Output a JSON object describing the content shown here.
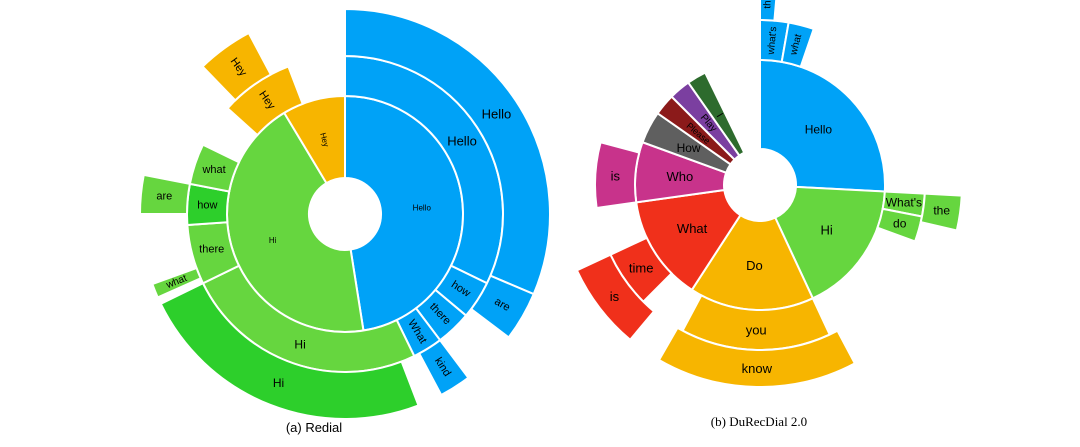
{
  "palette": {
    "blue": "#00a2f7",
    "green": "#66d63f",
    "dark_green": "#2dcf2b",
    "orange": "#f7b500",
    "red": "#f0301b",
    "magenta": "#c8338b",
    "purple_gray": "#7a6a8a",
    "dark_red": "#8b1a1a",
    "forest": "#2d6b2d",
    "gray": "#5f5f5f",
    "violet": "#7b3fa0"
  },
  "chart_data": [
    {
      "type": "sunburst",
      "caption": "(a) Redial",
      "rings": [
        {
          "level": 1,
          "segments": [
            {
              "label": "Hello",
              "color": "blue",
              "share": 0.475
            },
            {
              "label": "Hi",
              "color": "green",
              "share": 0.44
            },
            {
              "label": "Hey",
              "color": "orange",
              "share": 0.085
            }
          ]
        },
        {
          "level": 2,
          "segments": [
            {
              "label": "Hello",
              "color": "blue"
            },
            {
              "label": "how",
              "color": "blue"
            },
            {
              "label": "there",
              "color": "blue"
            },
            {
              "label": "What",
              "color": "blue"
            },
            {
              "label": "Hi",
              "color": "green"
            },
            {
              "label": "there",
              "color": "green"
            },
            {
              "label": "how",
              "color": "dark_green"
            },
            {
              "label": "what",
              "color": "green"
            },
            {
              "label": "Hey",
              "color": "orange"
            }
          ]
        },
        {
          "level": 3,
          "segments": [
            {
              "label": "Hello",
              "color": "blue"
            },
            {
              "label": "are",
              "color": "blue"
            },
            {
              "label": "kind",
              "color": "blue"
            },
            {
              "label": "Hi",
              "color": "dark_green"
            },
            {
              "label": "what",
              "color": "green"
            },
            {
              "label": "are",
              "color": "green"
            },
            {
              "label": "Hey",
              "color": "orange"
            }
          ]
        }
      ]
    },
    {
      "type": "sunburst",
      "caption": "(b) DuRecDial 2.0",
      "rings": [
        {
          "level": 1,
          "segments": [
            {
              "label": "Hello",
              "color": "blue"
            },
            {
              "label": "Hi",
              "color": "green"
            },
            {
              "label": "Do",
              "color": "orange"
            },
            {
              "label": "What",
              "color": "red"
            },
            {
              "label": "Who",
              "color": "magenta"
            },
            {
              "label": "How",
              "color": "gray"
            },
            {
              "label": "Please",
              "color": "dark_red"
            },
            {
              "label": "Play",
              "color": "violet"
            },
            {
              "label": "I",
              "color": "forest"
            }
          ]
        },
        {
          "level": 2,
          "segments": [
            {
              "label": "what's",
              "color": "blue"
            },
            {
              "label": "what",
              "color": "blue"
            },
            {
              "label": "What's",
              "color": "green"
            },
            {
              "label": "do",
              "color": "green"
            },
            {
              "label": "you",
              "color": "orange"
            },
            {
              "label": "time",
              "color": "red"
            },
            {
              "label": "is",
              "color": "magenta"
            }
          ]
        },
        {
          "level": 3,
          "segments": [
            {
              "label": "the",
              "color": "blue"
            },
            {
              "label": "the",
              "color": "green"
            },
            {
              "label": "know",
              "color": "orange"
            },
            {
              "label": "is",
              "color": "red"
            }
          ]
        }
      ]
    }
  ]
}
